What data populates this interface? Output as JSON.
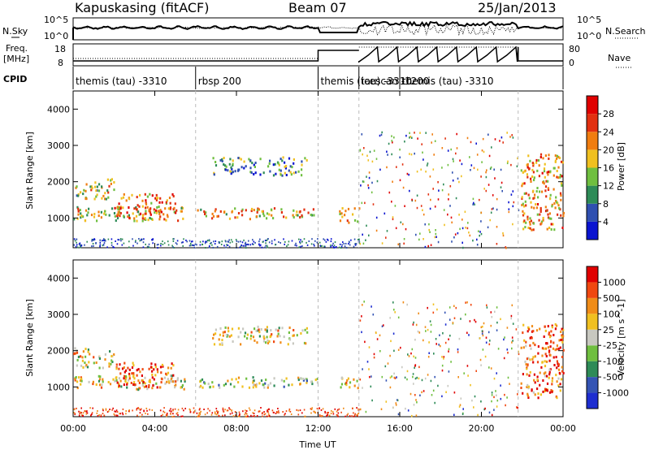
{
  "header": {
    "station": "Kapuskasing (fitACF)",
    "beam": "Beam 07",
    "date": "25/Jan/2013"
  },
  "strip_labels": {
    "nsky": "N.Sky",
    "nsearch": "N.Search",
    "freq_line1": "Freq.",
    "freq_line2": "[MHz]",
    "nave": "Nave",
    "cpid": "CPID",
    "noise_ticks": [
      "10^5",
      "10^0"
    ],
    "freq_ticks": [
      "18",
      "8"
    ],
    "nave_ticks": [
      "80",
      "0"
    ]
  },
  "cpid_segments": [
    {
      "label": "themis (tau) -3310",
      "start_hr": 0,
      "end_hr": 6
    },
    {
      "label": "rbsp 200",
      "start_hr": 6,
      "end_hr": 12
    },
    {
      "label": "themis (tau) -3310",
      "start_hr": 12,
      "end_hr": 14
    },
    {
      "label": "icescan -1200",
      "start_hr": 14,
      "end_hr": 16
    },
    {
      "label": "themis (tau) -3310",
      "start_hr": 16,
      "end_hr": 21.8
    }
  ],
  "colors": {
    "power": [
      "#0a14d0",
      "#2f4fb0",
      "#2e8b57",
      "#6fbf3f",
      "#f0c020",
      "#f07d10",
      "#e23010",
      "#e00000"
    ],
    "velocity": [
      "#e00000",
      "#f04810",
      "#f08c18",
      "#f0c020",
      "#c8c8c0",
      "#6fbf3f",
      "#2e8b57",
      "#3454b4",
      "#1e2ed0"
    ]
  },
  "chart_data": [
    {
      "type": "heatmap",
      "name": "power",
      "ylabel": "Slant Range [km]",
      "colorbar_label": "Power [dB]",
      "colorbar_ticks": [
        "28",
        "24",
        "20",
        "16",
        "12",
        "8",
        "4"
      ],
      "ylim": [
        180,
        4500
      ],
      "xlim": [
        0,
        24
      ],
      "yticks": [
        1000,
        2000,
        3000,
        4000
      ],
      "scatter_regions": [
        {
          "x0": 0.0,
          "x1": 2.0,
          "y0": 1550,
          "y1": 2100,
          "intensity": 0.5
        },
        {
          "x0": 0.0,
          "x1": 5.5,
          "y0": 950,
          "y1": 1350,
          "intensity": 0.55
        },
        {
          "x0": 2.0,
          "x1": 5.0,
          "y0": 1000,
          "y1": 1700,
          "intensity": 0.7
        },
        {
          "x0": 6.8,
          "x1": 11.5,
          "y0": 2200,
          "y1": 2700,
          "intensity": 0.3
        },
        {
          "x0": 6.0,
          "x1": 12.0,
          "y0": 1000,
          "y1": 1300,
          "intensity": 0.6
        },
        {
          "x0": 13.0,
          "x1": 14.0,
          "y0": 900,
          "y1": 1300,
          "intensity": 0.5
        },
        {
          "x0": 21.9,
          "x1": 24.0,
          "y0": 700,
          "y1": 2800,
          "intensity": 0.65
        }
      ]
    },
    {
      "type": "heatmap",
      "name": "velocity",
      "ylabel": "Slant Range [km]",
      "colorbar_label": "Velocity [m s^-1]",
      "colorbar_ticks": [
        "1000",
        "500",
        "100",
        "25",
        "-25",
        "-100",
        "-500",
        "-1000"
      ],
      "ylim": [
        180,
        4500
      ],
      "xlim": [
        0,
        24
      ],
      "yticks": [
        1000,
        2000,
        3000,
        4000
      ],
      "xticks": [
        "00:00",
        "04:00",
        "08:00",
        "12:00",
        "16:00",
        "20:00",
        "00:00"
      ],
      "xlabel": "Time UT",
      "scatter_regions": [
        {
          "x0": 0.0,
          "x1": 2.0,
          "y0": 1550,
          "y1": 2100,
          "intensity": 0.45
        },
        {
          "x0": 0.0,
          "x1": 5.5,
          "y0": 950,
          "y1": 1350,
          "intensity": 0.45
        },
        {
          "x0": 2.0,
          "x1": 5.0,
          "y0": 1000,
          "y1": 1700,
          "intensity": 0.15
        },
        {
          "x0": 6.8,
          "x1": 11.5,
          "y0": 2200,
          "y1": 2700,
          "intensity": 0.45
        },
        {
          "x0": 6.0,
          "x1": 12.0,
          "y0": 1000,
          "y1": 1300,
          "intensity": 0.55
        },
        {
          "x0": 13.0,
          "x1": 14.0,
          "y0": 900,
          "y1": 1300,
          "intensity": 0.45
        },
        {
          "x0": 21.9,
          "x1": 24.0,
          "y0": 700,
          "y1": 2800,
          "intensity": 0.2
        }
      ]
    }
  ]
}
